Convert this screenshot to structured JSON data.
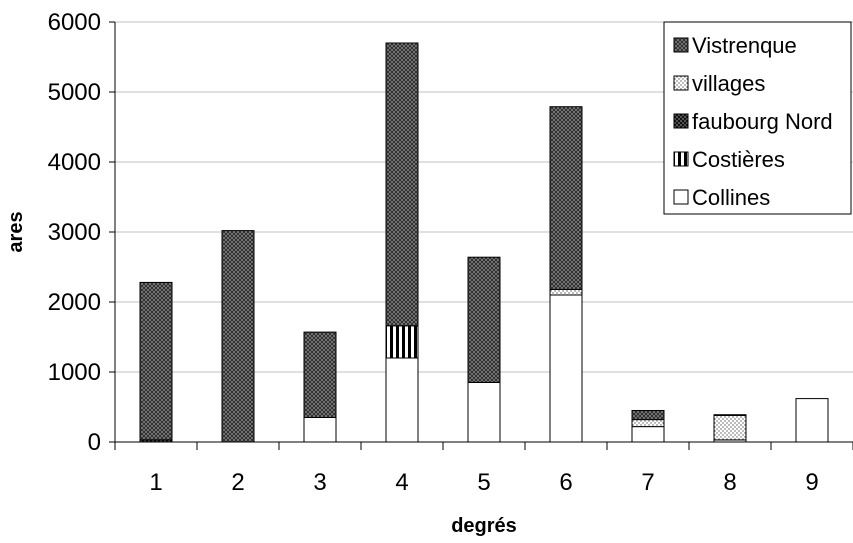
{
  "chart_data": {
    "type": "bar",
    "stacked": true,
    "title": "",
    "xlabel": "degrés",
    "ylabel": "ares",
    "ylim": [
      0,
      6000
    ],
    "yticks": [
      0,
      1000,
      2000,
      3000,
      4000,
      5000,
      6000
    ],
    "grid": "horizontal",
    "legend_position": "top-right",
    "categories": [
      "1",
      "2",
      "3",
      "4",
      "5",
      "6",
      "7",
      "8",
      "9"
    ],
    "series": [
      {
        "name": "Collines",
        "pattern": "white",
        "values": [
          0,
          0,
          350,
          1200,
          850,
          2100,
          220,
          30,
          620
        ]
      },
      {
        "name": "Costières",
        "pattern": "vertical-stripes",
        "values": [
          0,
          0,
          0,
          460,
          0,
          0,
          0,
          0,
          0
        ]
      },
      {
        "name": "faubourg Nord",
        "pattern": "dark-checker",
        "values": [
          30,
          0,
          0,
          0,
          0,
          0,
          0,
          0,
          0
        ]
      },
      {
        "name": "villages",
        "pattern": "dots",
        "values": [
          0,
          0,
          0,
          0,
          0,
          80,
          100,
          350,
          0
        ]
      },
      {
        "name": "Vistrenque",
        "pattern": "crosshatch",
        "values": [
          2250,
          3020,
          1220,
          4040,
          1790,
          2610,
          130,
          10,
          0
        ]
      }
    ],
    "legend_order": [
      "Vistrenque",
      "villages",
      "faubourg Nord",
      "Costières",
      "Collines"
    ]
  }
}
